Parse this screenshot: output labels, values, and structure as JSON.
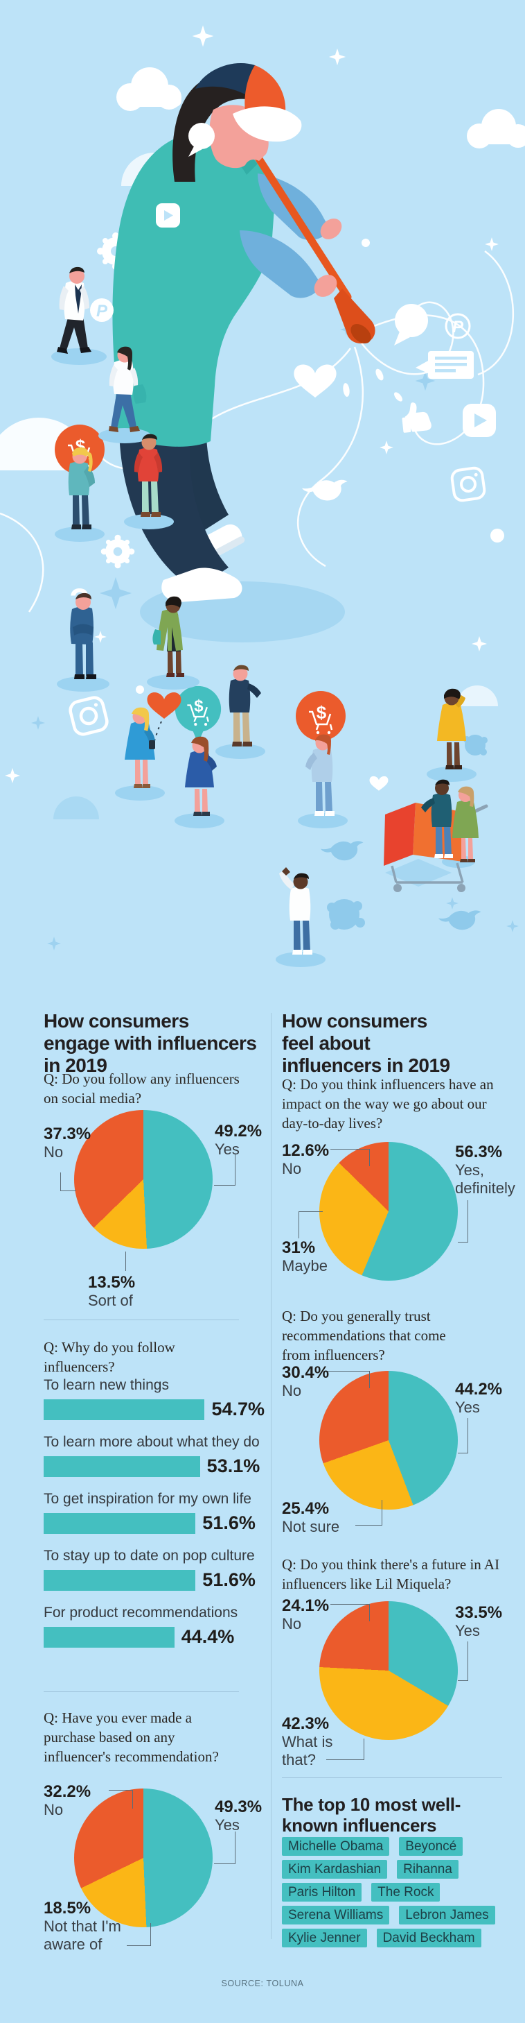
{
  "colors": {
    "background": "#BDE3F8",
    "teal": "#44BFC0",
    "orange": "#EB5B2C",
    "yellow": "#FBB616",
    "text": "#221F20",
    "leader_line": "#5B6B76"
  },
  "illustration": {
    "question_mark": "?",
    "pinterest_letter": "P",
    "dollar_sign": "$"
  },
  "sections": {
    "left_title": "How consumers engage with influencers in 2019",
    "right_title": "How consumers feel about influencers in 2019"
  },
  "top10": {
    "title": "The top 10 most well-known influencers",
    "names": [
      "Michelle Obama",
      "Beyoncé",
      "Kim Kardashian",
      "Rihanna",
      "Paris Hilton",
      "The Rock",
      "Serena Williams",
      "Lebron James",
      "Kylie Jenner",
      "David Beckham"
    ]
  },
  "source": "SOURCE: TOLUNA",
  "chart_data": [
    {
      "id": "follow-influencers",
      "type": "pie",
      "title": "Q: Do you follow any influencers on social media?",
      "slices": [
        {
          "label": "Yes",
          "value": 49.2,
          "display": "49.2%",
          "color": "#44BFC0"
        },
        {
          "label": "Sort of",
          "value": 13.5,
          "display": "13.5%",
          "color": "#FBB616"
        },
        {
          "label": "No",
          "value": 37.3,
          "display": "37.3%",
          "color": "#EB5B2C"
        }
      ],
      "legend_position": "around"
    },
    {
      "id": "why-follow",
      "type": "bar",
      "title": "Q: Why do you follow influencers?",
      "categories": [
        "To learn new things",
        "To learn more about what they do",
        "To get inspiration for my own life",
        "To stay up to date on pop culture",
        "For product recommendations"
      ],
      "values": [
        54.7,
        53.1,
        51.6,
        51.6,
        44.4
      ],
      "value_labels": [
        "54.7%",
        "53.1%",
        "51.6%",
        "51.6%",
        "44.4%"
      ],
      "xlim": [
        0,
        60
      ],
      "bar_color": "#44BFC0",
      "grid": false
    },
    {
      "id": "purchase-on-recommendation",
      "type": "pie",
      "title": "Q: Have you ever made a purchase based on any influencer's recommendation?",
      "slices": [
        {
          "label": "Yes",
          "value": 49.3,
          "display": "49.3%",
          "color": "#44BFC0"
        },
        {
          "label": "Not that I'm aware of",
          "value": 18.5,
          "display": "18.5%",
          "color": "#FBB616"
        },
        {
          "label": "No",
          "value": 32.2,
          "display": "32.2%",
          "color": "#EB5B2C"
        }
      ],
      "legend_position": "around"
    },
    {
      "id": "impact-on-lives",
      "type": "pie",
      "title": "Q: Do you think influencers have an impact on the way we go about our day-to-day lives?",
      "slices": [
        {
          "label": "Yes, definitely",
          "value": 56.3,
          "display": "56.3%",
          "color": "#44BFC0"
        },
        {
          "label": "Maybe",
          "value": 31,
          "display": "31%",
          "color": "#FBB616"
        },
        {
          "label": "No",
          "value": 12.6,
          "display": "12.6%",
          "color": "#EB5B2C"
        }
      ],
      "legend_position": "around"
    },
    {
      "id": "trust-recommendations",
      "type": "pie",
      "title": "Q: Do you generally trust recommendations that come from influencers?",
      "slices": [
        {
          "label": "Yes",
          "value": 44.2,
          "display": "44.2%",
          "color": "#44BFC0"
        },
        {
          "label": "Not sure",
          "value": 25.4,
          "display": "25.4%",
          "color": "#FBB616"
        },
        {
          "label": "No",
          "value": 30.4,
          "display": "30.4%",
          "color": "#EB5B2C"
        }
      ],
      "legend_position": "around"
    },
    {
      "id": "ai-influencers-future",
      "type": "pie",
      "title": "Q: Do you think there's a future in AI influencers like Lil Miquela?",
      "slices": [
        {
          "label": "Yes",
          "value": 33.5,
          "display": "33.5%",
          "color": "#44BFC0"
        },
        {
          "label": "What is that?",
          "value": 42.3,
          "display": "42.3%",
          "color": "#FBB616"
        },
        {
          "label": "No",
          "value": 24.1,
          "display": "24.1%",
          "color": "#EB5B2C"
        }
      ],
      "legend_position": "around"
    }
  ]
}
